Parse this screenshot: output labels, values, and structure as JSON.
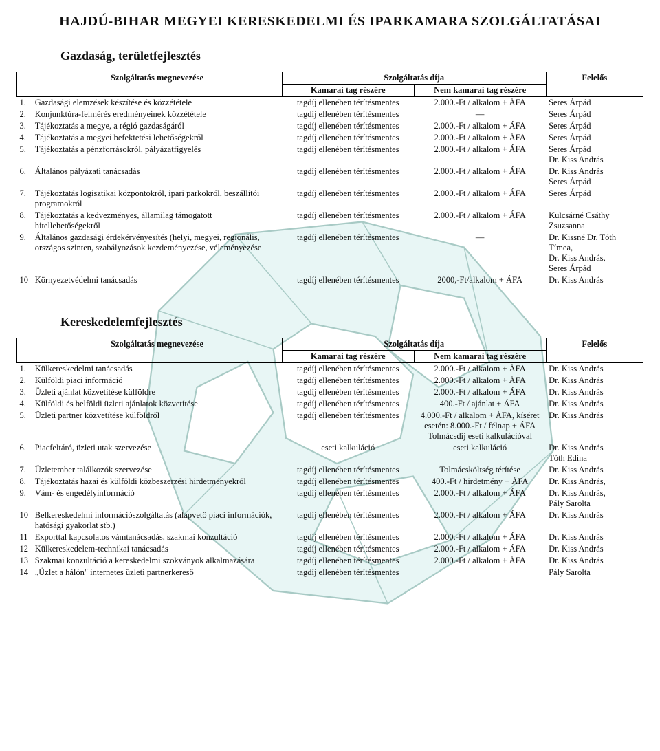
{
  "doc_title": "HAJDÚ-BIHAR MEGYEI KERESKEDELMI ÉS IPARKAMARA SZOLGÁLTATÁSAI",
  "section1": {
    "title": "Gazdaság, területfejlesztés",
    "headers": {
      "name": "Szolgáltatás megnevezése",
      "fee_group": "Szolgáltatás díja",
      "fee_member": "Kamarai tag részére",
      "fee_nonmember": "Nem kamarai tag részére",
      "responsible": "Felelős"
    },
    "rows": [
      {
        "n": "1.",
        "name": "Gazdasági elemzések készítése és közzététele",
        "fee1": "tagdíj ellenében térítésmentes",
        "fee2": "2.000.-Ft / alkalom + ÁFA",
        "resp": "Seres Árpád"
      },
      {
        "n": "2.",
        "name": "Konjunktúra-felmérés eredményeinek közzététele",
        "fee1": "tagdíj ellenében térítésmentes",
        "fee2": "—",
        "resp": "Seres Árpád"
      },
      {
        "n": "3.",
        "name": "Tájékoztatás a megye, a régió gazdaságáról",
        "fee1": "tagdíj ellenében térítésmentes",
        "fee2": "2.000.-Ft / alkalom + ÁFA",
        "resp": "Seres Árpád"
      },
      {
        "n": "4.",
        "name": "Tájékoztatás a megyei befektetési lehetőségekről",
        "fee1": "tagdíj ellenében térítésmentes",
        "fee2": "2.000.-Ft / alkalom + ÁFA",
        "resp": "Seres Árpád"
      },
      {
        "n": "5.",
        "name": "Tájékoztatás a pénzforrásokról, pályázatfigyelés",
        "fee1": "tagdíj ellenében térítésmentes",
        "fee2": "2.000.-Ft / alkalom + ÁFA",
        "resp": "Seres Árpád\nDr. Kiss András"
      },
      {
        "n": "6.",
        "name": "Általános pályázati tanácsadás",
        "fee1": "tagdíj ellenében térítésmentes",
        "fee2": "2.000.-Ft / alkalom + ÁFA",
        "resp": "Dr. Kiss András\nSeres Árpád"
      },
      {
        "n": "7.",
        "name": "Tájékoztatás logisztikai központokról, ipari parkokról, beszállítói programokról",
        "fee1": "tagdíj ellenében térítésmentes",
        "fee2": "2.000.-Ft / alkalom + ÁFA",
        "resp": "Seres Árpád"
      },
      {
        "n": "8.",
        "name": "Tájékoztatás a kedvezményes, államilag támogatott hitellehetőségekről",
        "fee1": "tagdíj ellenében térítésmentes",
        "fee2": "2.000.-Ft / alkalom + ÁFA",
        "resp": "Kulcsárné Csáthy Zsuzsanna"
      },
      {
        "n": "9.",
        "name": "Általános gazdasági érdekérvényesítés (helyi, megyei, regionális, országos szinten, szabályozások kezdeményezése, véleményezése",
        "fee1": "tagdíj ellenében térítésmentes",
        "fee2": "—",
        "resp": "Dr. Kissné Dr. Tóth Tímea,\nDr. Kiss András,\nSeres Árpád"
      },
      {
        "n": "10",
        "name": "Környezetvédelmi tanácsadás",
        "fee1": "tagdíj ellenében térítésmentes",
        "fee2": "2000,-Ft/alkalom + ÁFA",
        "resp": "Dr. Kiss András"
      }
    ]
  },
  "section2": {
    "title": "Kereskedelemfejlesztés",
    "headers": {
      "name": "Szolgáltatás megnevezése",
      "fee_group": "Szolgáltatás díja",
      "fee_member": "Kamarai tag részére",
      "fee_nonmember": "Nem kamarai tag részére",
      "responsible": "Felelős"
    },
    "rows": [
      {
        "n": "1.",
        "name": "Külkereskedelmi tanácsadás",
        "fee1": "tagdíj ellenében térítésmentes",
        "fee2": "2.000.-Ft / alkalom + ÁFA",
        "resp": "Dr. Kiss András"
      },
      {
        "n": "2.",
        "name": "Külföldi piaci információ",
        "fee1": "tagdíj ellenében térítésmentes",
        "fee2": "2.000.-Ft / alkalom + ÁFA",
        "resp": "Dr. Kiss András"
      },
      {
        "n": "3.",
        "name": "Üzleti ajánlat közvetítése külföldre",
        "fee1": "tagdíj ellenében térítésmentes",
        "fee2": "2.000.-Ft / alkalom + ÁFA",
        "resp": "Dr. Kiss András"
      },
      {
        "n": "4.",
        "name": "Külföldi és belföldi üzleti ajánlatok közvetítése",
        "fee1": "tagdíj ellenében térítésmentes",
        "fee2": "400.-Ft / ajánlat + ÁFA",
        "resp": "Dr. Kiss András"
      },
      {
        "n": "5.",
        "name": "Üzleti partner közvetítése külföldről",
        "fee1": "tagdíj ellenében térítésmentes",
        "fee2": "4.000.-Ft / alkalom + ÁFA, kíséret esetén: 8.000.-Ft / félnap + ÁFA Tolmácsdíj eseti kalkulációval",
        "resp": "Dr. Kiss András"
      },
      {
        "n": "6.",
        "name": "Piacfeltáró, üzleti utak szervezése",
        "fee1": "eseti kalkuláció",
        "fee2": "eseti kalkuláció",
        "resp": "Dr. Kiss András\nTóth Edina"
      },
      {
        "n": "7.",
        "name": "Üzletember találkozók szervezése",
        "fee1": "tagdíj ellenében térítésmentes",
        "fee2": "Tolmácsköltség térítése",
        "resp": "Dr. Kiss András"
      },
      {
        "n": "8.",
        "name": "Tájékoztatás hazai és külföldi közbeszerzési hirdetményekről",
        "fee1": "tagdíj ellenében térítésmentes",
        "fee2": "400.-Ft / hirdetmény + ÁFA",
        "resp": "Dr. Kiss András,"
      },
      {
        "n": "9.",
        "name": "Vám- és engedélyinformáció",
        "fee1": "tagdíj ellenében térítésmentes",
        "fee2": "2.000.-Ft / alkalom + ÁFA",
        "resp": "Dr. Kiss András,\nPály Sarolta"
      },
      {
        "n": "10",
        "name": "Belkereskedelmi információszolgáltatás (alapvető piaci információk, hatósági gyakorlat stb.)",
        "fee1": "tagdíj ellenében térítésmentes",
        "fee2": "2.000.-Ft / alkalom + ÁFA",
        "resp": "Dr. Kiss András"
      },
      {
        "n": "11",
        "name": "Exporttal kapcsolatos vámtanácsadás, szakmai konzultáció",
        "fee1": "tagdíj ellenében térítésmentes",
        "fee2": "2.000.-Ft / alkalom + ÁFA",
        "resp": "Dr. Kiss András"
      },
      {
        "n": "12",
        "name": "Külkereskedelem-technikai tanácsadás",
        "fee1": "tagdíj ellenében térítésmentes",
        "fee2": "2.000.-Ft / alkalom + ÁFA",
        "resp": "Dr. Kiss András"
      },
      {
        "n": "13",
        "name": "Szakmai konzultáció a kereskedelmi szokványok alkalmazására",
        "fee1": "tagdíj ellenében térítésmentes",
        "fee2": "2.000.-Ft / alkalom + ÁFA",
        "resp": "Dr. Kiss András"
      },
      {
        "n": "14",
        "name": "„Üzlet a hálón\" internetes üzleti partnerkereső",
        "fee1": "tagdíj ellenében térítésmentes",
        "fee2": "",
        "resp": "Pály Sarolta"
      }
    ]
  },
  "map_style": {
    "fill": "#bfe8e4",
    "stroke": "#0a6a5c"
  }
}
